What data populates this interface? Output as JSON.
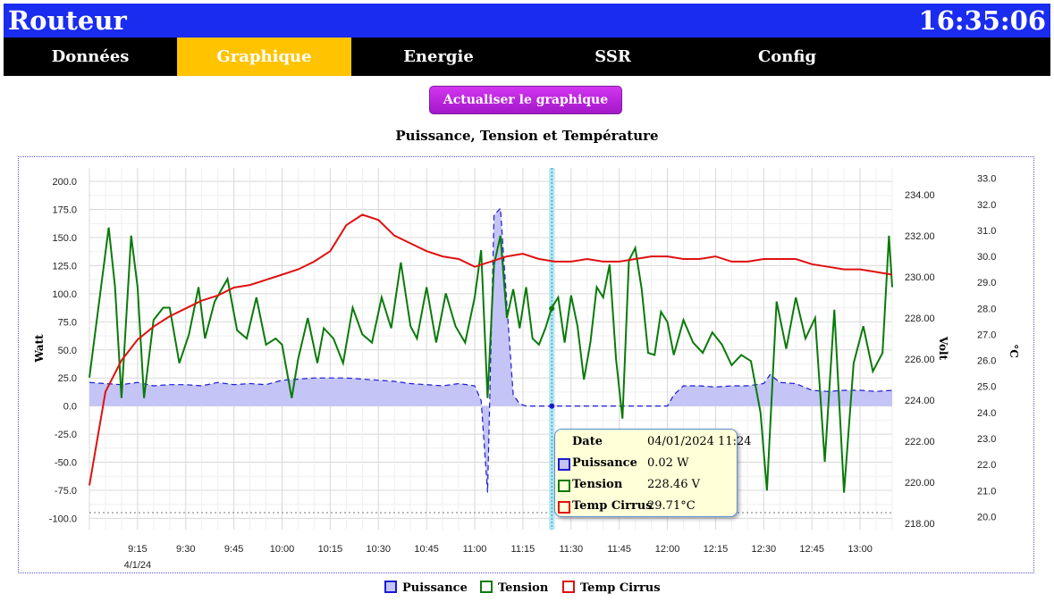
{
  "header": {
    "title": "Routeur",
    "clock": "16:35:06"
  },
  "nav": {
    "tabs": [
      "Données",
      "Graphique",
      "Energie",
      "SSR",
      "Config"
    ],
    "active": 1
  },
  "refresh_button": "Actualiser le graphique",
  "tooltip": {
    "date_label": "Date",
    "date_value": "04/01/2024 11:24",
    "rows": [
      {
        "label": "Puissance",
        "value": "0.02 W",
        "color": "#1a1ad0"
      },
      {
        "label": "Tension",
        "value": "228.46 V",
        "color": "#0a7a0a"
      },
      {
        "label": "Temp Cirrus",
        "value": "29.71°C",
        "color": "#e01010"
      }
    ]
  },
  "chart_data": {
    "type": "line",
    "title": "Puissance, Tension et Température",
    "x_unit": "minutes",
    "x_range": [
      "09:00",
      "13:10"
    ],
    "x_ticks": [
      "9:15",
      "9:30",
      "9:45",
      "10:00",
      "10:15",
      "10:30",
      "10:45",
      "11:00",
      "11:15",
      "11:30",
      "11:45",
      "12:00",
      "12:15",
      "12:30",
      "12:45",
      "13:00"
    ],
    "x_date_label": "4/1/24",
    "grid": true,
    "legend_position": "bottom",
    "cursor_time": "11:24",
    "axes": [
      {
        "id": "watt",
        "label": "Watt",
        "side": "left",
        "min": -110,
        "max": 212,
        "ticks": [
          "200.0",
          "175.0",
          "150.0",
          "125.0",
          "100.0",
          "75.0",
          "50.0",
          "25.0",
          "0.0",
          "-25.0",
          "-50.0",
          "-75.0",
          "-100.0"
        ],
        "tick_values": [
          200,
          175,
          150,
          125,
          100,
          75,
          50,
          25,
          0,
          -25,
          -50,
          -75,
          -100
        ]
      },
      {
        "id": "volt",
        "label": "Volt",
        "side": "right",
        "min": 217.7,
        "max": 235.3,
        "ticks": [
          "234.00",
          "232.00",
          "230.00",
          "228.00",
          "226.00",
          "224.00",
          "222.00",
          "220.00",
          "218.00"
        ],
        "tick_values": [
          234,
          232,
          230,
          228,
          226,
          224,
          222,
          220,
          218
        ]
      },
      {
        "id": "temp",
        "label": "°C",
        "side": "right",
        "min": 19.5,
        "max": 33.4,
        "ticks": [
          "33.0",
          "32.0",
          "31.0",
          "30.0",
          "29.0",
          "28.0",
          "27.0",
          "26.0",
          "25.0",
          "24.0",
          "23.0",
          "22.0",
          "21.0",
          "20.0"
        ],
        "tick_values": [
          33,
          32,
          31,
          30,
          29,
          28,
          27,
          26,
          25,
          24,
          23,
          22,
          21,
          20
        ]
      }
    ],
    "series": [
      {
        "name": "Puissance",
        "axis": "watt",
        "color": "#1a1ad0",
        "fill": "#c4c4f6",
        "style": "dashed-area",
        "x": [
          "09:00",
          "09:05",
          "09:10",
          "09:15",
          "09:20",
          "09:25",
          "09:30",
          "09:35",
          "09:40",
          "09:45",
          "09:50",
          "09:55",
          "10:00",
          "10:05",
          "10:10",
          "10:15",
          "10:20",
          "10:25",
          "10:30",
          "10:35",
          "10:40",
          "10:45",
          "10:50",
          "10:55",
          "11:00",
          "11:02",
          "11:04",
          "11:06",
          "11:08",
          "11:10",
          "11:12",
          "11:14",
          "11:16",
          "11:20",
          "11:24",
          "11:30",
          "11:40",
          "11:50",
          "12:00",
          "12:02",
          "12:05",
          "12:10",
          "12:15",
          "12:20",
          "12:25",
          "12:30",
          "12:32",
          "12:35",
          "12:40",
          "12:45",
          "12:50",
          "12:55",
          "13:00",
          "13:05",
          "13:10"
        ],
        "y": [
          21,
          20,
          19,
          21,
          18,
          19,
          19,
          18,
          21,
          19,
          20,
          19,
          23,
          24,
          25,
          25,
          25,
          24,
          23,
          22,
          20,
          19,
          18,
          20,
          18,
          5,
          -77,
          170,
          176,
          90,
          10,
          2,
          0,
          0,
          0,
          0,
          0,
          0,
          0,
          10,
          18,
          18,
          17,
          18,
          18,
          20,
          28,
          21,
          20,
          14,
          13,
          14,
          14,
          13,
          14
        ]
      },
      {
        "name": "Tension",
        "axis": "volt",
        "color": "#0a7a0a",
        "style": "line",
        "x": [
          "09:00",
          "09:06",
          "09:08",
          "09:10",
          "09:13",
          "09:15",
          "09:17",
          "09:20",
          "09:23",
          "09:25",
          "09:28",
          "09:31",
          "09:34",
          "09:36",
          "09:39",
          "09:43",
          "09:46",
          "09:49",
          "09:52",
          "09:55",
          "09:58",
          "10:00",
          "10:03",
          "10:05",
          "10:08",
          "10:11",
          "10:13",
          "10:16",
          "10:19",
          "10:22",
          "10:25",
          "10:28",
          "10:31",
          "10:34",
          "10:37",
          "10:40",
          "10:42",
          "10:45",
          "10:48",
          "10:51",
          "10:54",
          "10:57",
          "11:00",
          "11:02",
          "11:04",
          "11:06",
          "11:08",
          "11:10",
          "11:12",
          "11:14",
          "11:16",
          "11:18",
          "11:20",
          "11:22",
          "11:24",
          "11:26",
          "11:28",
          "11:30",
          "11:32",
          "11:34",
          "11:36",
          "11:38",
          "11:40",
          "11:42",
          "11:44",
          "11:46",
          "11:48",
          "11:50",
          "11:52",
          "11:54",
          "11:56",
          "11:58",
          "12:00",
          "12:02",
          "12:05",
          "12:08",
          "12:11",
          "12:14",
          "12:17",
          "12:20",
          "12:23",
          "12:26",
          "12:29",
          "12:31",
          "12:34",
          "12:37",
          "12:40",
          "12:43",
          "12:46",
          "12:49",
          "12:52",
          "12:55",
          "12:58",
          "13:01",
          "13:04",
          "13:07",
          "13:09",
          "13:10"
        ],
        "y": [
          225.1,
          232.4,
          229.5,
          224.1,
          232.0,
          229.5,
          224.1,
          227.9,
          228.5,
          228.5,
          225.8,
          227.2,
          229.5,
          227.0,
          228.8,
          229.9,
          227.4,
          227.0,
          229.0,
          226.7,
          227.0,
          226.7,
          224.1,
          226.0,
          228.0,
          225.8,
          227.5,
          227.0,
          225.8,
          228.5,
          227.2,
          226.8,
          229.0,
          227.5,
          230.7,
          227.6,
          227.0,
          229.5,
          226.8,
          229.2,
          227.6,
          226.8,
          229.0,
          231.3,
          224.1,
          230.6,
          232.0,
          228.0,
          229.4,
          227.5,
          229.5,
          227.0,
          226.7,
          227.5,
          228.5,
          229.0,
          226.8,
          229.1,
          227.6,
          225.0,
          226.8,
          229.5,
          229.0,
          230.6,
          226.0,
          223.1,
          230.8,
          231.4,
          229.4,
          226.3,
          226.2,
          228.3,
          227.8,
          226.2,
          227.9,
          226.8,
          226.3,
          227.3,
          226.7,
          225.7,
          226.2,
          225.9,
          223.4,
          219.6,
          228.8,
          226.5,
          229.0,
          227.0,
          228.0,
          221.0,
          228.4,
          219.5,
          225.8,
          227.6,
          225.4,
          226.3,
          232.0,
          229.5
        ]
      },
      {
        "name": "Temp Cirrus",
        "axis": "temp",
        "color": "#e01010",
        "style": "line",
        "x": [
          "09:00",
          "09:05",
          "09:10",
          "09:15",
          "09:20",
          "09:25",
          "09:30",
          "09:35",
          "09:40",
          "09:45",
          "09:50",
          "09:55",
          "10:00",
          "10:05",
          "10:10",
          "10:15",
          "10:20",
          "10:25",
          "10:30",
          "10:35",
          "10:40",
          "10:45",
          "10:50",
          "10:55",
          "11:00",
          "11:05",
          "11:10",
          "11:15",
          "11:20",
          "11:25",
          "11:30",
          "11:35",
          "11:40",
          "11:45",
          "11:50",
          "11:55",
          "12:00",
          "12:05",
          "12:10",
          "12:15",
          "12:20",
          "12:25",
          "12:30",
          "12:35",
          "12:40",
          "12:45",
          "12:50",
          "12:55",
          "13:00",
          "13:05",
          "13:10"
        ],
        "y": [
          21.2,
          24.8,
          26.0,
          26.8,
          27.3,
          27.7,
          28.0,
          28.3,
          28.5,
          28.8,
          28.9,
          29.1,
          29.3,
          29.5,
          29.8,
          30.2,
          31.2,
          31.6,
          31.4,
          30.8,
          30.5,
          30.2,
          30.0,
          29.9,
          29.6,
          29.8,
          30.0,
          30.1,
          29.9,
          29.8,
          29.8,
          29.9,
          29.8,
          29.8,
          29.9,
          30.0,
          30.0,
          29.9,
          29.9,
          30.0,
          29.8,
          29.8,
          29.9,
          29.9,
          29.9,
          29.7,
          29.6,
          29.5,
          29.5,
          29.4,
          29.3
        ]
      }
    ]
  }
}
